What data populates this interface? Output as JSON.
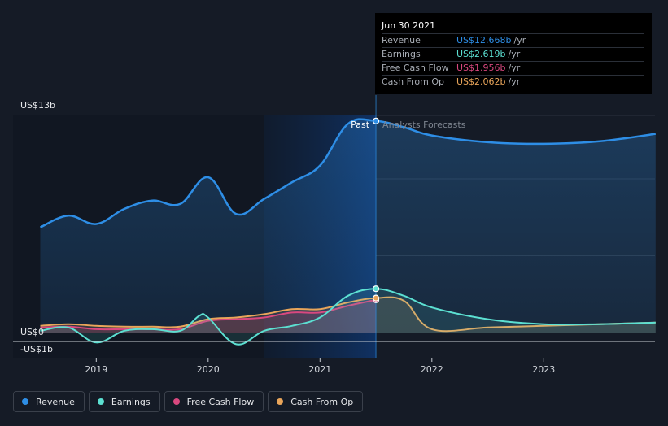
{
  "tooltip": {
    "date": "Jun 30 2021",
    "rows": [
      {
        "name": "Revenue",
        "value": "US$12.668b",
        "unit": "/yr",
        "color": "#2e8ee6"
      },
      {
        "name": "Earnings",
        "value": "US$2.619b",
        "unit": "/yr",
        "color": "#5ce0d2"
      },
      {
        "name": "Free Cash Flow",
        "value": "US$1.956b",
        "unit": "/yr",
        "color": "#d9487f"
      },
      {
        "name": "Cash From Op",
        "value": "US$2.062b",
        "unit": "/yr",
        "color": "#e9a55a"
      }
    ]
  },
  "legend": [
    {
      "label": "Revenue",
      "color": "#2e8ee6"
    },
    {
      "label": "Earnings",
      "color": "#5ce0d2"
    },
    {
      "label": "Free Cash Flow",
      "color": "#d9487f"
    },
    {
      "label": "Cash From Op",
      "color": "#e9a55a"
    }
  ],
  "labels": {
    "past": "Past",
    "forecast": "Analysts Forecasts",
    "y_top": "US$13b",
    "y_zero": "US$0",
    "y_neg": "-US$1b"
  },
  "chart_data": {
    "type": "area",
    "x_unit": "year",
    "xlim": [
      2018.5,
      2024.0
    ],
    "ylim": [
      -1,
      13
    ],
    "x_ticks": [
      2019,
      2020,
      2021,
      2022,
      2023
    ],
    "x_tick_labels": [
      "2019",
      "2020",
      "2021",
      "2022",
      "2023"
    ],
    "y_tick_labels": [
      "US$13b",
      "US$0",
      "-US$1b"
    ],
    "past_end": 2021.5,
    "highlight_start": 2020.5,
    "grid": true,
    "series": [
      {
        "name": "Revenue",
        "color": "#2e8ee6",
        "x": [
          2018.5,
          2018.75,
          2019.0,
          2019.25,
          2019.5,
          2019.75,
          2020.0,
          2020.25,
          2020.5,
          2020.75,
          2021.0,
          2021.25,
          2021.5,
          2021.75,
          2022.0,
          2022.5,
          2023.0,
          2023.5,
          2024.0
        ],
        "y": [
          6.3,
          7.0,
          6.5,
          7.4,
          7.9,
          7.7,
          9.3,
          7.1,
          8.0,
          9.0,
          10.0,
          12.5,
          12.668,
          12.3,
          11.8,
          11.4,
          11.3,
          11.45,
          11.9
        ]
      },
      {
        "name": "Earnings",
        "color": "#5ce0d2",
        "x": [
          2018.5,
          2018.75,
          2019.0,
          2019.25,
          2019.5,
          2019.75,
          2019.92,
          2020.0,
          2020.25,
          2020.5,
          2020.75,
          2021.0,
          2021.25,
          2021.5,
          2021.75,
          2022.0,
          2022.5,
          2023.0,
          2023.5,
          2024.0
        ],
        "y": [
          0.1,
          0.3,
          -0.6,
          0.1,
          0.2,
          0.1,
          1.0,
          0.9,
          -0.7,
          0.1,
          0.4,
          0.9,
          2.2,
          2.619,
          2.2,
          1.5,
          0.8,
          0.5,
          0.5,
          0.6
        ]
      },
      {
        "name": "Free Cash Flow",
        "color": "#d9487f",
        "x": [
          2018.5,
          2018.75,
          2019.0,
          2019.25,
          2019.5,
          2019.75,
          2020.0,
          2020.25,
          2020.5,
          2020.75,
          2021.0,
          2021.25,
          2021.5
        ],
        "y": [
          0.3,
          0.35,
          0.2,
          0.2,
          0.2,
          0.2,
          0.7,
          0.8,
          0.9,
          1.2,
          1.2,
          1.6,
          1.956
        ]
      },
      {
        "name": "Cash From Op",
        "color": "#e9a55a",
        "x": [
          2018.5,
          2018.75,
          2019.0,
          2019.25,
          2019.5,
          2019.75,
          2020.0,
          2020.25,
          2020.5,
          2020.75,
          2021.0,
          2021.25,
          2021.5,
          2021.75,
          2022.0,
          2022.5,
          2023.0,
          2023.5,
          2024.0
        ],
        "y": [
          0.4,
          0.5,
          0.4,
          0.35,
          0.35,
          0.35,
          0.8,
          0.9,
          1.1,
          1.4,
          1.4,
          1.8,
          2.062,
          1.9,
          0.2,
          0.3,
          0.4,
          0.5,
          0.6
        ]
      }
    ]
  }
}
